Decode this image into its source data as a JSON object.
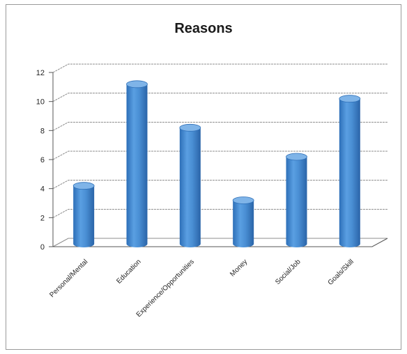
{
  "chart_data": {
    "type": "bar",
    "title": "Reasons",
    "categories": [
      "Personal/Mental",
      "Education",
      "Experience/Opportunities",
      "Money",
      "Social/Job",
      "Goals/Skill"
    ],
    "values": [
      4,
      11,
      8,
      3,
      6,
      10
    ],
    "ylim": [
      0,
      12
    ],
    "yticks": [
      0,
      2,
      4,
      6,
      8,
      10,
      12
    ],
    "xlabel": "",
    "ylabel": "",
    "grid": true,
    "legend": "none",
    "bar_style": "3d-cylinder",
    "colors": {
      "bar": "#4a8fd4",
      "bar_dark": "#2d6fb8",
      "bar_top": "#7fb4e8",
      "grid": "#8c8c8c",
      "axis": "#555555"
    }
  }
}
